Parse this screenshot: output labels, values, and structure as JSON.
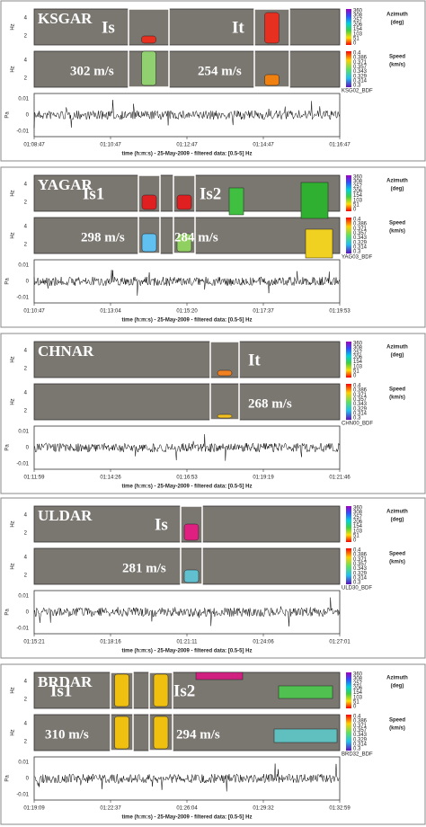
{
  "figure": {
    "hz_label": "Hz",
    "hz_ticks": [
      "4",
      "2"
    ],
    "pa_label": "Pa",
    "pa_ticks": [
      "0.01",
      "0",
      "-0.01"
    ],
    "xlabel": "time (h:m:s) - 25-May-2009 - filtered data: [0.5-5] Hz",
    "azimuth": {
      "title": "Azimuth",
      "unit": "(deg)",
      "ticks": [
        "360",
        "308",
        "257",
        "206",
        "154",
        "103",
        "51",
        "0"
      ]
    },
    "speed": {
      "title": "Speed",
      "unit": "(km/s)",
      "ticks": [
        "0.4",
        "0.386",
        "0.371",
        "0.357",
        "0.343",
        "0.329",
        "0.314",
        "0.3"
      ]
    },
    "panels": [
      {
        "station": "KSGAR",
        "channel": "KSG02_BDF",
        "times": [
          "01:08:47",
          "01:10:47",
          "01:12:47",
          "01:14:47",
          "01:16:47"
        ],
        "annotations": [
          {
            "label": "Is",
            "speed": "302 m/s"
          },
          {
            "label": "It",
            "speed": "254 m/s"
          }
        ]
      },
      {
        "station": "YAGAR",
        "channel": "YAG03_BDF",
        "times": [
          "01:10:47",
          "01:13:04",
          "01:15:20",
          "01:17:37",
          "01:19:53"
        ],
        "annotations": [
          {
            "label": "Is1",
            "speed": "298 m/s"
          },
          {
            "label": "Is2",
            "speed": "284 m/s"
          }
        ]
      },
      {
        "station": "CHNAR",
        "channel": "CHN00_BDF",
        "times": [
          "01:11:59",
          "01:14:26",
          "01:16:53",
          "01:19:19",
          "01:21:46"
        ],
        "annotations": [
          {
            "label": "It",
            "speed": "268 m/s"
          }
        ]
      },
      {
        "station": "ULDAR",
        "channel": "ULD30_BDF",
        "times": [
          "01:15:21",
          "01:18:16",
          "01:21:11",
          "01:24:06",
          "01:27:01"
        ],
        "annotations": [
          {
            "label": "Is",
            "speed": "281 m/s"
          }
        ]
      },
      {
        "station": "BRDAR",
        "channel": "BRD32_BDF",
        "times": [
          "01:19:09",
          "01:22:37",
          "01:26:04",
          "01:29:32",
          "01:32:59"
        ],
        "annotations": [
          {
            "label": "Is1",
            "speed": "310 m/s"
          },
          {
            "label": "Is2",
            "speed": "294 m/s"
          }
        ]
      }
    ]
  }
}
